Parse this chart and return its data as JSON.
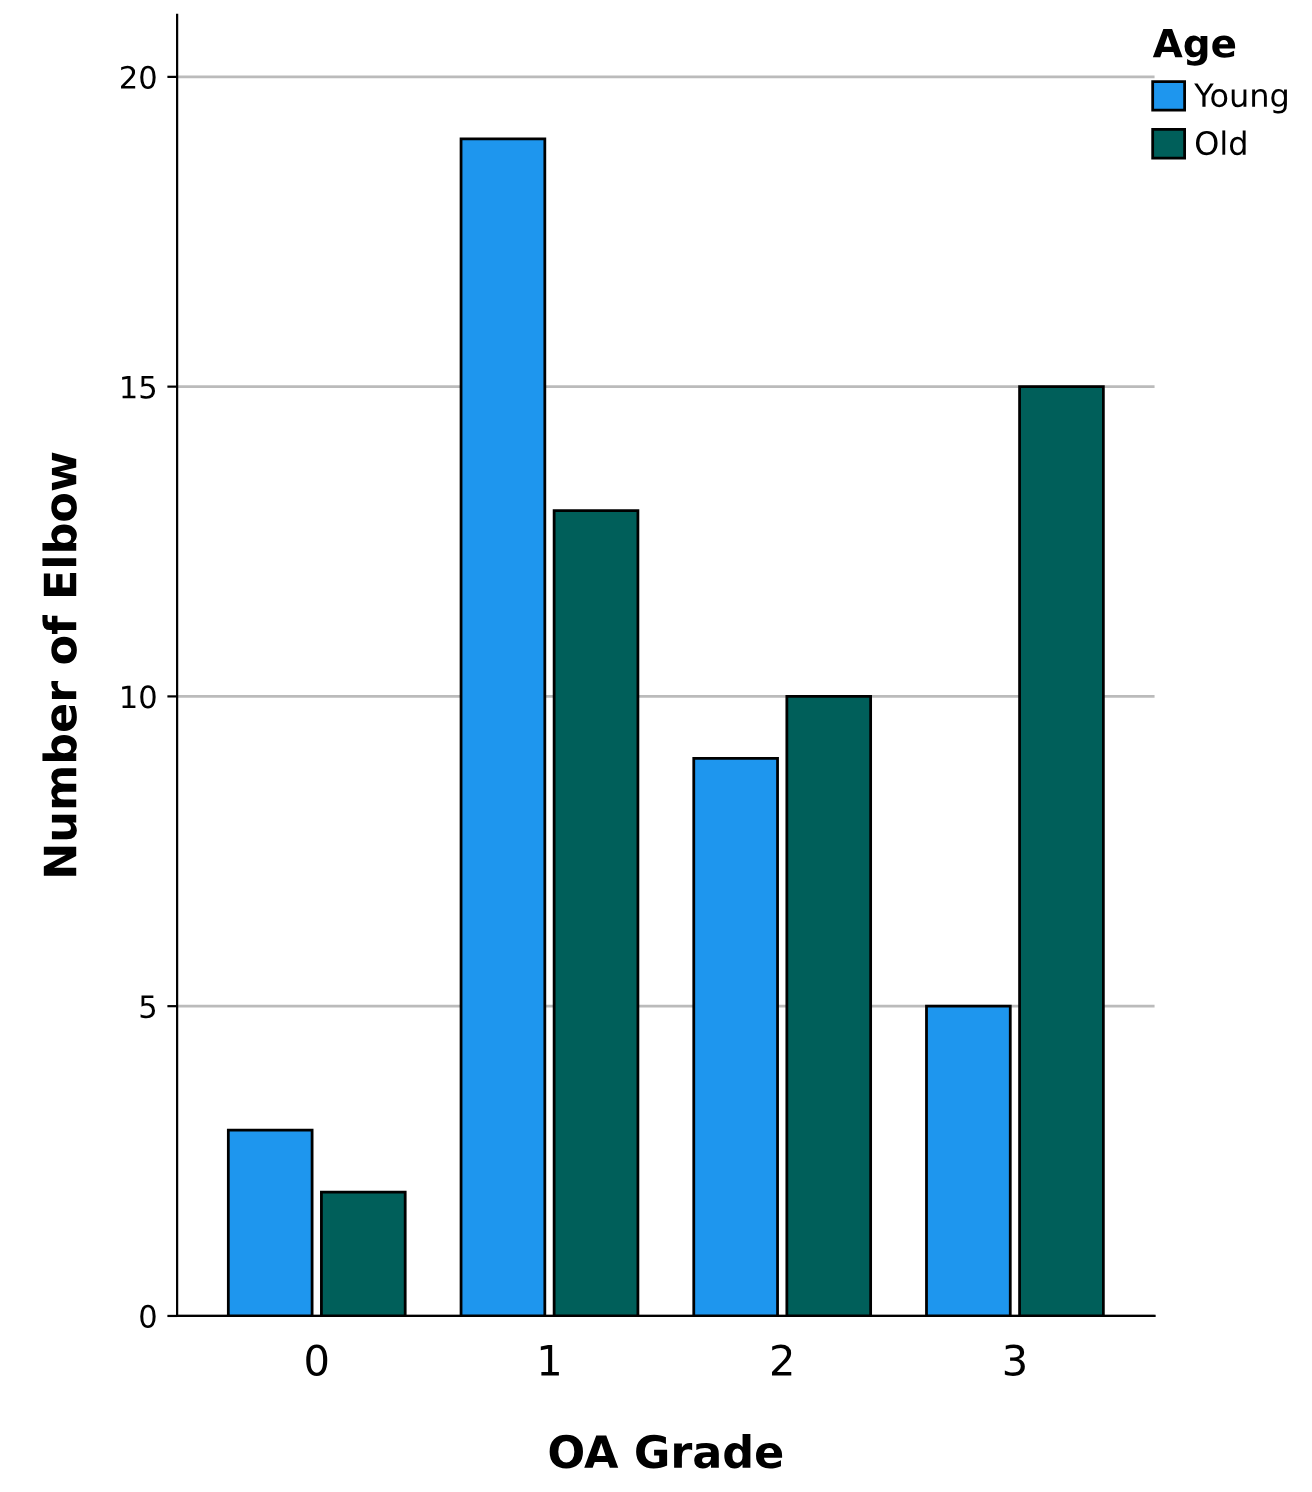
{
  "chart_data": {
    "type": "bar",
    "xlabel": "OA Grade",
    "ylabel": "Number of Elbow",
    "legend_title": "Age",
    "categories": [
      "0",
      "1",
      "2",
      "3"
    ],
    "series": [
      {
        "name": "Young",
        "color": "#1e96ee",
        "values": [
          3,
          19,
          9,
          5
        ]
      },
      {
        "name": "Old",
        "color": "#005f5a",
        "values": [
          2,
          13,
          10,
          15
        ]
      }
    ],
    "ylim": [
      0,
      21
    ],
    "yticks": [
      0,
      5,
      10,
      15,
      20
    ],
    "grid": "y",
    "legend": "top right"
  }
}
